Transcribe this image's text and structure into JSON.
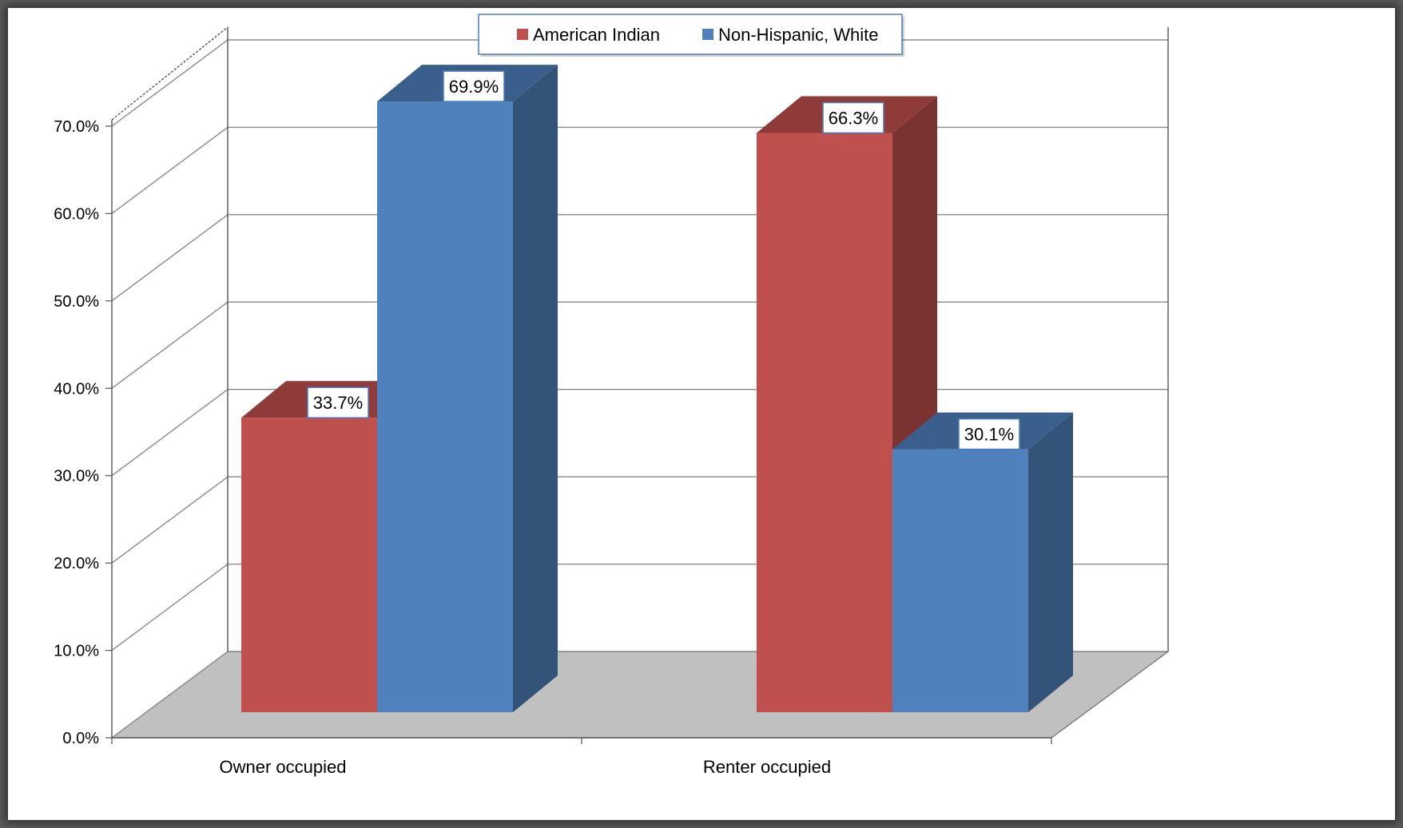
{
  "chart_data": {
    "type": "bar",
    "categories": [
      "Owner occupied",
      "Renter occupied"
    ],
    "series": [
      {
        "name": "American Indian",
        "color": "#C0504D",
        "values": [
          33.7,
          66.3
        ],
        "labels": [
          "33.7%",
          "66.3%"
        ]
      },
      {
        "name": "Non-Hispanic, White",
        "color": "#4F81BD",
        "values": [
          69.9,
          30.1
        ],
        "labels": [
          "69.9%",
          "30.1%"
        ]
      }
    ],
    "y_ticks": [
      "0.0%",
      "10.0%",
      "20.0%",
      "30.0%",
      "40.0%",
      "50.0%",
      "60.0%",
      "70.0%"
    ],
    "ylim": [
      0,
      70
    ],
    "grid": true,
    "legend_position": "top-center",
    "style": "3d-clustered-column"
  }
}
